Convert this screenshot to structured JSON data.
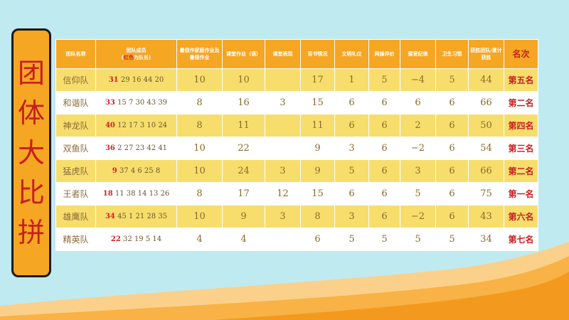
{
  "title_chars": [
    "团",
    "体",
    "大",
    "比",
    "拼"
  ],
  "headers": {
    "team": "团队名称",
    "members_line1": "团队成员",
    "members_line2_prefix": "(",
    "members_line2_red": "红色",
    "members_line2_suffix": "为队长)",
    "summer": "暑假作家庭作业及暑假作业",
    "classwork": "课堂作业（语）",
    "classroom": "课堂表现",
    "recite": "背书情况",
    "etiquette": "文明礼仪",
    "evaluation": "两操评价",
    "dorm": "寝室纪律",
    "hygiene": "卫生习惯",
    "total": "获胜团队/累计获胜",
    "rank": "名次"
  },
  "rows": [
    {
      "team": "信仰队",
      "leader": "31",
      "members": "29 16 44 20",
      "summer": "10",
      "classwork": "10",
      "classroom": "",
      "recite": "17",
      "etiquette": "1",
      "evaluation": "5",
      "dorm": "−4",
      "hygiene": "5",
      "total": "44",
      "rank": "第五名"
    },
    {
      "team": "和谐队",
      "leader": "33",
      "members": "15 7 30 43 39",
      "summer": "8",
      "classwork": "16",
      "classroom": "3",
      "recite": "15",
      "etiquette": "6",
      "evaluation": "6",
      "dorm": "6",
      "hygiene": "6",
      "total": "66",
      "rank": "第二名"
    },
    {
      "team": "神龙队",
      "leader": "40",
      "members": "12 17 3  10 24",
      "summer": "8",
      "classwork": "11",
      "classroom": "",
      "recite": "11",
      "etiquette": "6",
      "evaluation": "6",
      "dorm": "2",
      "hygiene": "6",
      "total": "50",
      "rank": "第四名"
    },
    {
      "team": "双鱼队",
      "leader": "36",
      "members": "2 27 23 42 41",
      "summer": "10",
      "classwork": "22",
      "classroom": "",
      "recite": "9",
      "etiquette": "3",
      "evaluation": "6",
      "dorm": "−2",
      "hygiene": "6",
      "total": "54",
      "rank": "第三名"
    },
    {
      "team": "猛虎队",
      "leader": "9",
      "members": "37 4 6 25 8",
      "summer": "10",
      "classwork": "24",
      "classroom": "3",
      "recite": "9",
      "etiquette": "5",
      "evaluation": "6",
      "dorm": "3",
      "hygiene": "6",
      "total": "66",
      "rank": "第二名"
    },
    {
      "team": "王者队",
      "leader": "18",
      "members": "11 38 14 13 26",
      "summer": "8",
      "classwork": "17",
      "classroom": "12",
      "recite": "15",
      "etiquette": "6",
      "evaluation": "6",
      "dorm": "5",
      "hygiene": "6",
      "total": "75",
      "rank": "第一名"
    },
    {
      "team": "雄鹰队",
      "leader": "34",
      "members": "45 1 21 28 35",
      "summer": "10",
      "classwork": "9",
      "classroom": "3",
      "recite": "8",
      "etiquette": "3",
      "evaluation": "6",
      "dorm": "−2",
      "hygiene": "6",
      "total": "43",
      "rank": "第六名"
    },
    {
      "team": "精英队",
      "leader": "22",
      "members": "32  19 5 14",
      "summer": "4",
      "classwork": "4",
      "classroom": "",
      "recite": "6",
      "etiquette": "5",
      "evaluation": "5",
      "dorm": "5",
      "hygiene": "5",
      "total": "34",
      "rank": "第七名"
    }
  ],
  "colors": {
    "background": "#bfeaf0",
    "header_orange": "#f5a623",
    "row_yellow": "#f7de6c",
    "accent_red": "#c81e1e"
  }
}
